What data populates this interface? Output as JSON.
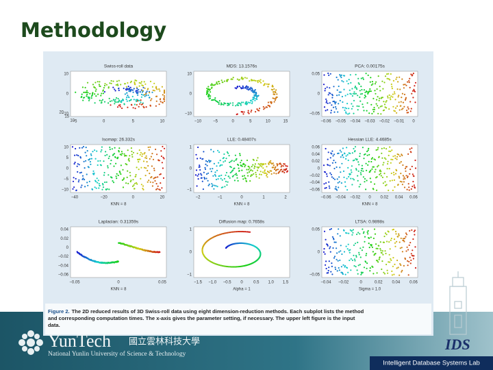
{
  "header": {
    "title": "Methodology"
  },
  "figure": {
    "panels": [
      {
        "title": "Swiss-roll data",
        "yticks": [
          "10",
          "0",
          "−10"
        ],
        "zticks": [
          "20",
          "15",
          "10"
        ],
        "xticks": [
          "−5",
          "0",
          "5",
          "10"
        ]
      },
      {
        "title": "MDS: 13.1576s",
        "yticks": [
          "10",
          "0",
          "−10"
        ],
        "xticks": [
          "−10",
          "−5",
          "0",
          "5",
          "10",
          "15"
        ]
      },
      {
        "title": "PCA: 0.00175s",
        "yticks": [
          "0.05",
          "0",
          "−0.05"
        ],
        "xticks": [
          "−0.06",
          "−0.05",
          "−0.04",
          "−0.03",
          "−0.02",
          "−0.01",
          "0"
        ]
      },
      {
        "title": "Isomap: 26.332s",
        "yticks": [
          "10",
          "5",
          "0",
          "−5",
          "−10"
        ],
        "xticks": [
          "−40",
          "−20",
          "0",
          "20"
        ],
        "xlabel": "KNN = 8"
      },
      {
        "title": "LLE: 0.48407s",
        "yticks": [
          "1",
          "0",
          "−1"
        ],
        "xticks": [
          "−2",
          "−1",
          "0",
          "1",
          "2"
        ],
        "xlabel": "KNN = 8"
      },
      {
        "title": "Hessian LLE: 4.4685s",
        "yticks": [
          "0.06",
          "0.04",
          "0.02",
          "0",
          "−0.02",
          "−0.04",
          "−0.06"
        ],
        "xticks": [
          "−0.06",
          "−0.04",
          "−0.02",
          "0",
          "0.02",
          "0.04",
          "0.06"
        ],
        "xlabel": "KNN = 8"
      },
      {
        "title": "Laplacian: 0.31359s",
        "yticks": [
          "0.04",
          "0.02",
          "0",
          "−0.02",
          "−0.04",
          "−0.06"
        ],
        "xticks": [
          "−0.05",
          "0",
          "0.05"
        ],
        "xlabel": "KNN = 8"
      },
      {
        "title": "Diffusion map: 0.7658s",
        "yticks": [
          "1",
          "0",
          "−1"
        ],
        "xticks": [
          "−1.5",
          "−1.0",
          "−0.5",
          "0",
          "0.5",
          "1.0",
          "1.5"
        ],
        "xlabel": "Alpha = 1"
      },
      {
        "title": "LTSA: 0.9898s",
        "yticks": [
          "0.05",
          "0",
          "−0.05"
        ],
        "xticks": [
          "−0.04",
          "−0.02",
          "0",
          "0.02",
          "0.04",
          "0.06"
        ],
        "xlabel": "Sigma = 1.0"
      }
    ],
    "caption_label": "Figure 2.",
    "caption": [
      "The 2D reduced results of 3D Swiss-roll data using eight dimension-reduction methods. Each subplot lists the method",
      "and corresponding computation times. The x-axis gives the parameter setting, if necessary. The upper left figure is the input",
      "data."
    ]
  },
  "footer": {
    "brand": "YunTech",
    "chinese": "國立雲林科技大學",
    "english": "National Yunlin University of Science & Technology",
    "lab_logo": "IDS",
    "lab": "Intelligent Database Systems Lab"
  }
}
